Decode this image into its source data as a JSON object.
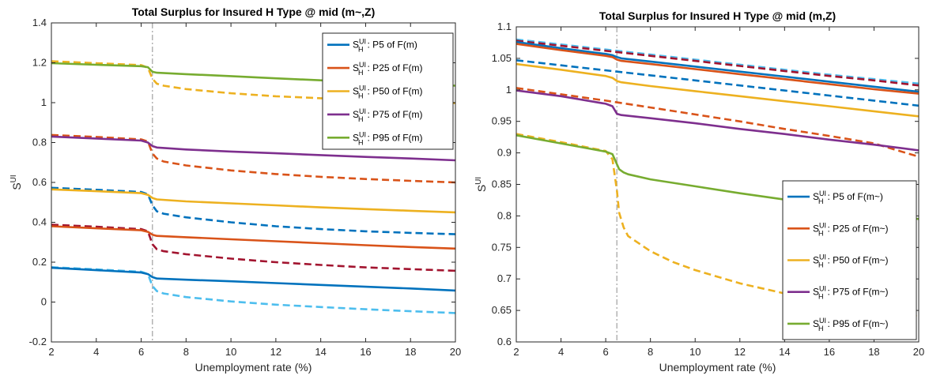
{
  "chart_data": [
    {
      "type": "line",
      "title": "Total Surplus for Insured H Type @ mid (m~,Z)",
      "xlabel": "Unemployment rate (%)",
      "ylabel": "S^UI",
      "xlim": [
        2,
        20
      ],
      "ylim": [
        -0.2,
        1.4
      ],
      "xticks": [
        2,
        4,
        6,
        8,
        10,
        12,
        14,
        16,
        18,
        20
      ],
      "yticks": [
        -0.2,
        0,
        0.2,
        0.4,
        0.6,
        0.8,
        1,
        1.2,
        1.4
      ],
      "yticklabels": [
        "-0.2",
        "0",
        "0.2",
        "0.4",
        "0.6",
        "0.8",
        "1",
        "1.2",
        "1.4"
      ],
      "vline_x": 6.5,
      "legend_position": "top-right",
      "series": [
        {
          "name": "S_H^UI: P5 of F(m)",
          "color": "#0072BD",
          "style": "solid",
          "x": [
            2,
            4,
            6,
            6.3,
            6.5,
            6.7,
            8,
            10,
            12,
            14,
            16,
            18,
            20
          ],
          "y": [
            0.172,
            0.16,
            0.148,
            0.14,
            0.125,
            0.118,
            0.112,
            0.104,
            0.095,
            0.086,
            0.077,
            0.068,
            0.058
          ]
        },
        {
          "name": "",
          "color": "#4DBEEE",
          "style": "dashed",
          "x": [
            2,
            4,
            6,
            6.3,
            6.5,
            6.7,
            7,
            8,
            10,
            12,
            14,
            16,
            18,
            20
          ],
          "y": [
            0.175,
            0.164,
            0.152,
            0.14,
            0.08,
            0.055,
            0.043,
            0.025,
            0.003,
            -0.013,
            -0.025,
            -0.036,
            -0.046,
            -0.055
          ]
        },
        {
          "name": "S_H^UI: P25 of F(m)",
          "color": "#D95319",
          "style": "solid",
          "x": [
            2,
            4,
            6,
            6.3,
            6.5,
            6.7,
            8,
            10,
            12,
            14,
            16,
            18,
            20
          ],
          "y": [
            0.38,
            0.37,
            0.36,
            0.352,
            0.338,
            0.332,
            0.325,
            0.315,
            0.305,
            0.295,
            0.285,
            0.276,
            0.268
          ]
        },
        {
          "name": "",
          "color": "#A2142F",
          "style": "dashed",
          "x": [
            2,
            4,
            6,
            6.3,
            6.5,
            6.7,
            7,
            8,
            10,
            12,
            14,
            16,
            18,
            20
          ],
          "y": [
            0.388,
            0.378,
            0.366,
            0.355,
            0.29,
            0.265,
            0.255,
            0.24,
            0.218,
            0.2,
            0.186,
            0.174,
            0.165,
            0.157
          ]
        },
        {
          "name": "S_H^UI: P50 of F(m)",
          "color": "#EDB120",
          "style": "solid",
          "x": [
            2,
            4,
            6,
            6.3,
            6.5,
            6.7,
            8,
            10,
            12,
            14,
            16,
            18,
            20
          ],
          "y": [
            0.565,
            0.556,
            0.546,
            0.538,
            0.522,
            0.515,
            0.505,
            0.495,
            0.485,
            0.475,
            0.466,
            0.458,
            0.45
          ]
        },
        {
          "name": "",
          "color": "#0072BD",
          "style": "dashed",
          "x": [
            2,
            4,
            6,
            6.3,
            6.5,
            6.7,
            7,
            8,
            10,
            12,
            14,
            16,
            18,
            20
          ],
          "y": [
            0.573,
            0.563,
            0.552,
            0.54,
            0.485,
            0.455,
            0.443,
            0.425,
            0.4,
            0.38,
            0.366,
            0.355,
            0.347,
            0.34
          ]
        },
        {
          "name": "S_H^UI: P75 of F(m)",
          "color": "#7E2F8E",
          "style": "solid",
          "x": [
            2,
            4,
            6,
            6.3,
            6.5,
            6.7,
            8,
            10,
            12,
            14,
            16,
            18,
            20
          ],
          "y": [
            0.83,
            0.82,
            0.81,
            0.8,
            0.782,
            0.775,
            0.765,
            0.755,
            0.746,
            0.737,
            0.728,
            0.72,
            0.711
          ]
        },
        {
          "name": "",
          "color": "#D95319",
          "style": "dashed",
          "x": [
            2,
            4,
            6,
            6.3,
            6.5,
            6.7,
            7,
            8,
            10,
            12,
            14,
            16,
            18,
            20
          ],
          "y": [
            0.838,
            0.828,
            0.816,
            0.805,
            0.745,
            0.72,
            0.705,
            0.685,
            0.66,
            0.642,
            0.628,
            0.617,
            0.608,
            0.6
          ]
        },
        {
          "name": "S_H^UI: P95 of F(m)",
          "color": "#77AC30",
          "style": "solid",
          "x": [
            2,
            4,
            6,
            6.3,
            6.5,
            6.7,
            8,
            10,
            12,
            14,
            16,
            18,
            20
          ],
          "y": [
            1.198,
            1.19,
            1.183,
            1.178,
            1.155,
            1.15,
            1.143,
            1.133,
            1.122,
            1.112,
            1.102,
            1.093,
            1.085
          ]
        },
        {
          "name": "",
          "color": "#EDB120",
          "style": "dashed",
          "x": [
            2,
            4,
            6,
            6.3,
            6.5,
            6.7,
            7,
            8,
            10,
            12,
            14,
            16,
            18,
            20
          ],
          "y": [
            1.208,
            1.198,
            1.188,
            1.175,
            1.12,
            1.095,
            1.085,
            1.068,
            1.047,
            1.032,
            1.022,
            1.013,
            1.005,
            0.998
          ]
        }
      ]
    },
    {
      "type": "line",
      "title": "Total Surplus for Insured H Type @ mid (m,Z)",
      "xlabel": "Unemployment rate (%)",
      "ylabel": "S^UI",
      "xlim": [
        2,
        20
      ],
      "ylim": [
        0.6,
        1.1
      ],
      "xticks": [
        2,
        4,
        6,
        8,
        10,
        12,
        14,
        16,
        18,
        20
      ],
      "yticks": [
        0.6,
        0.65,
        0.7,
        0.75,
        0.8,
        0.85,
        0.9,
        0.95,
        1,
        1.05,
        1.1
      ],
      "yticklabels": [
        "0.6",
        "0.65",
        "0.7",
        "0.75",
        "0.8",
        "0.85",
        "0.9",
        "0.95",
        "1",
        "1.05",
        "1.1"
      ],
      "vline_x": 6.5,
      "legend_position": "bottom-right",
      "series": [
        {
          "name": "S_H^UI: P5 of F(m~)",
          "color": "#0072BD",
          "style": "solid",
          "x": [
            2,
            4,
            6,
            6.3,
            6.5,
            6.7,
            8,
            10,
            12,
            14,
            16,
            18,
            20
          ],
          "y": [
            1.076,
            1.066,
            1.057,
            1.055,
            1.052,
            1.05,
            1.045,
            1.037,
            1.029,
            1.021,
            1.013,
            1.005,
            0.997
          ]
        },
        {
          "name": "",
          "color": "#4DBEEE",
          "style": "dashed",
          "x": [
            2,
            4,
            6,
            8,
            10,
            12,
            14,
            16,
            18,
            20
          ],
          "y": [
            1.08,
            1.072,
            1.064,
            1.056,
            1.048,
            1.04,
            1.032,
            1.024,
            1.017,
            1.01
          ]
        },
        {
          "name": "S_H^UI: P25 of F(m~)",
          "color": "#D95319",
          "style": "solid",
          "x": [
            2,
            4,
            6,
            6.3,
            6.5,
            6.7,
            8,
            10,
            12,
            14,
            16,
            18,
            20
          ],
          "y": [
            1.073,
            1.063,
            1.054,
            1.052,
            1.048,
            1.046,
            1.041,
            1.033,
            1.025,
            1.017,
            1.009,
            1.001,
            0.994
          ]
        },
        {
          "name": "",
          "color": "#A2142F",
          "style": "dashed",
          "x": [
            2,
            4,
            6,
            8,
            10,
            12,
            14,
            16,
            18,
            20
          ],
          "y": [
            1.078,
            1.07,
            1.062,
            1.054,
            1.046,
            1.038,
            1.03,
            1.022,
            1.015,
            1.007
          ]
        },
        {
          "name": "S_H^UI: P50 of F(m~)",
          "color": "#EDB120",
          "style": "solid",
          "x": [
            2,
            4,
            6,
            6.3,
            6.5,
            6.7,
            8,
            10,
            12,
            14,
            16,
            18,
            20
          ],
          "y": [
            1.041,
            1.032,
            1.022,
            1.019,
            1.014,
            1.012,
            1.006,
            0.998,
            0.99,
            0.982,
            0.974,
            0.966,
            0.958
          ]
        },
        {
          "name": "",
          "color": "#0072BD",
          "style": "dashed",
          "x": [
            2,
            4,
            6,
            8,
            10,
            12,
            14,
            16,
            18,
            20
          ],
          "y": [
            1.047,
            1.039,
            1.031,
            1.023,
            1.015,
            1.007,
            0.999,
            0.991,
            0.983,
            0.975
          ]
        },
        {
          "name": "S_H^UI: P75 of F(m~)",
          "color": "#7E2F8E",
          "style": "solid",
          "x": [
            2,
            4,
            6,
            6.3,
            6.5,
            6.7,
            8,
            10,
            12,
            14,
            16,
            18,
            20
          ],
          "y": [
            0.999,
            0.99,
            0.978,
            0.974,
            0.962,
            0.96,
            0.955,
            0.947,
            0.938,
            0.93,
            0.921,
            0.913,
            0.904
          ]
        },
        {
          "name": "",
          "color": "#D95319",
          "style": "dashed",
          "x": [
            2,
            4,
            6,
            8,
            10,
            12,
            14,
            16,
            18,
            20
          ],
          "y": [
            1.003,
            0.993,
            0.983,
            0.972,
            0.961,
            0.95,
            0.938,
            0.927,
            0.915,
            0.894
          ]
        },
        {
          "name": "S_H^UI: P95 of F(m~)",
          "color": "#77AC30",
          "style": "solid",
          "x": [
            2,
            4,
            6,
            6.3,
            6.5,
            6.6,
            6.8,
            7,
            8,
            10,
            12,
            14,
            16,
            18,
            20
          ],
          "y": [
            0.928,
            0.915,
            0.902,
            0.898,
            0.882,
            0.874,
            0.869,
            0.866,
            0.858,
            0.847,
            0.836,
            0.826,
            0.815,
            0.805,
            0.795
          ]
        },
        {
          "name": "",
          "color": "#EDB120",
          "style": "dashed",
          "x": [
            2,
            4,
            6,
            6.3,
            6.5,
            6.6,
            6.8,
            7,
            8,
            9,
            10,
            12,
            14,
            16,
            18,
            20
          ],
          "y": [
            0.93,
            0.917,
            0.903,
            0.89,
            0.84,
            0.805,
            0.782,
            0.768,
            0.744,
            0.727,
            0.714,
            0.693,
            0.677,
            0.665,
            0.652,
            0.64
          ]
        }
      ]
    }
  ]
}
